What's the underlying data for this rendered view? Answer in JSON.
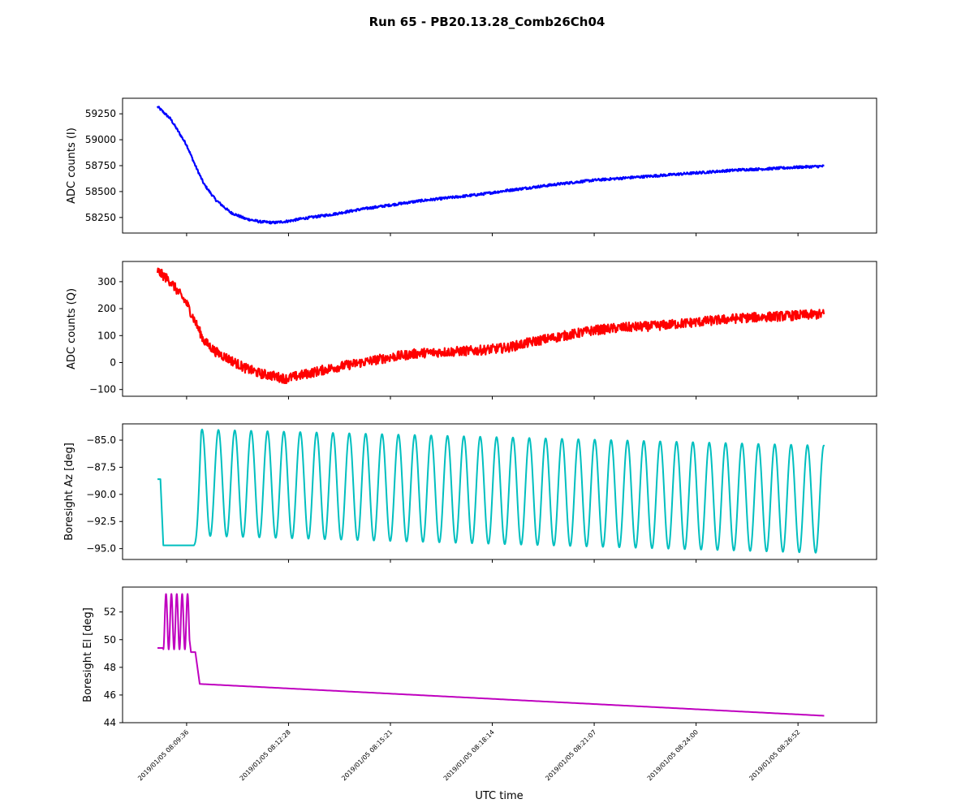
{
  "figure": {
    "title": "Run 65 - PB20.13.28_Comb26Ch04",
    "xlabel": "UTC time"
  },
  "chart_data": [
    {
      "type": "line",
      "ylabel": "ADC counts (I)",
      "color": "#0000ff",
      "yticks": [
        58250,
        58500,
        58750,
        59000,
        59250
      ],
      "ylim": [
        58100,
        59400
      ],
      "noise": 12,
      "series": [
        {
          "points": [
            [
              0.0,
              59320
            ],
            [
              0.45,
              59200
            ],
            [
              1.0,
              58950
            ],
            [
              1.3,
              58750
            ],
            [
              1.6,
              58570
            ],
            [
              2.0,
              58420
            ],
            [
              2.5,
              58300
            ],
            [
              3.0,
              58240
            ],
            [
              3.5,
              58210
            ],
            [
              4.0,
              58200
            ],
            [
              4.5,
              58215
            ],
            [
              5.0,
              58240
            ],
            [
              6.0,
              58280
            ],
            [
              7.0,
              58330
            ],
            [
              8.0,
              58370
            ],
            [
              9.0,
              58410
            ],
            [
              10.0,
              58440
            ],
            [
              11.0,
              58470
            ],
            [
              12.0,
              58510
            ],
            [
              13.0,
              58545
            ],
            [
              14.0,
              58580
            ],
            [
              15.0,
              58610
            ],
            [
              16.0,
              58630
            ],
            [
              17.0,
              58650
            ],
            [
              18.0,
              58670
            ],
            [
              19.0,
              58690
            ],
            [
              20.0,
              58710
            ],
            [
              21.0,
              58720
            ],
            [
              22.0,
              58735
            ],
            [
              22.9,
              58745
            ]
          ]
        }
      ]
    },
    {
      "type": "line",
      "ylabel": "ADC counts (Q)",
      "color": "#ff0000",
      "yticks": [
        -100,
        0,
        100,
        200,
        300
      ],
      "ylim": [
        -125,
        375
      ],
      "noise": 18,
      "series": [
        {
          "points": [
            [
              0.0,
              340
            ],
            [
              0.45,
              300
            ],
            [
              1.0,
              220
            ],
            [
              1.3,
              150
            ],
            [
              1.6,
              80
            ],
            [
              2.0,
              40
            ],
            [
              2.5,
              10
            ],
            [
              3.0,
              -20
            ],
            [
              3.5,
              -40
            ],
            [
              4.0,
              -50
            ],
            [
              4.4,
              -60
            ],
            [
              5.0,
              -45
            ],
            [
              6.0,
              -20
            ],
            [
              7.0,
              0
            ],
            [
              8.0,
              20
            ],
            [
              9.0,
              35
            ],
            [
              10.0,
              40
            ],
            [
              11.0,
              45
            ],
            [
              12.0,
              55
            ],
            [
              13.0,
              80
            ],
            [
              14.0,
              100
            ],
            [
              15.0,
              120
            ],
            [
              16.0,
              130
            ],
            [
              17.0,
              135
            ],
            [
              18.0,
              145
            ],
            [
              19.0,
              155
            ],
            [
              20.0,
              165
            ],
            [
              21.0,
              170
            ],
            [
              22.0,
              175
            ],
            [
              22.9,
              180
            ]
          ]
        }
      ]
    },
    {
      "type": "line",
      "ylabel": "Boresight Az [deg]",
      "color": "#00bfbf",
      "yticks": [
        -95.0,
        -92.5,
        -90.0,
        -87.5,
        -85.0
      ],
      "ylim": [
        -96.0,
        -83.5
      ],
      "scan": {
        "hold_start": -88.6,
        "hold_until": 0.1,
        "drop_to": -94.7,
        "drop_until": 0.2,
        "rest_until": 1.25,
        "osc_start": 1.25,
        "osc_end": 22.9,
        "period": 0.562,
        "max_start": -84.0,
        "max_end": -85.5,
        "min_start": -93.8,
        "min_end": -95.4
      }
    },
    {
      "type": "line",
      "ylabel": "Boresight El [deg]",
      "color": "#bf00bf",
      "yticks": [
        44,
        46,
        48,
        50,
        52
      ],
      "ylim": [
        44,
        53.8
      ],
      "wobble": {
        "base": 49.4,
        "start": 0.0,
        "osc_start": 0.2,
        "osc_end": 1.1,
        "period": 0.185,
        "max": 53.3,
        "min": 49.3,
        "after": 49.1,
        "step_at": 1.35,
        "step_to": 46.8,
        "end_x": 22.9,
        "end_value": 44.5
      }
    }
  ],
  "x_axis": {
    "xlim": [
      -1.2,
      24.7
    ],
    "ticks": [
      {
        "x": 1.0,
        "label": "2019/01/05 08:09:36"
      },
      {
        "x": 4.5,
        "label": "2019/01/05 08:12:28"
      },
      {
        "x": 8.0,
        "label": "2019/01/05 08:15:21"
      },
      {
        "x": 11.5,
        "label": "2019/01/05 08:18:14"
      },
      {
        "x": 15.0,
        "label": "2019/01/05 08:21:07"
      },
      {
        "x": 18.5,
        "label": "2019/01/05 08:24:00"
      },
      {
        "x": 22.0,
        "label": "2019/01/05 08:26:52"
      }
    ]
  }
}
